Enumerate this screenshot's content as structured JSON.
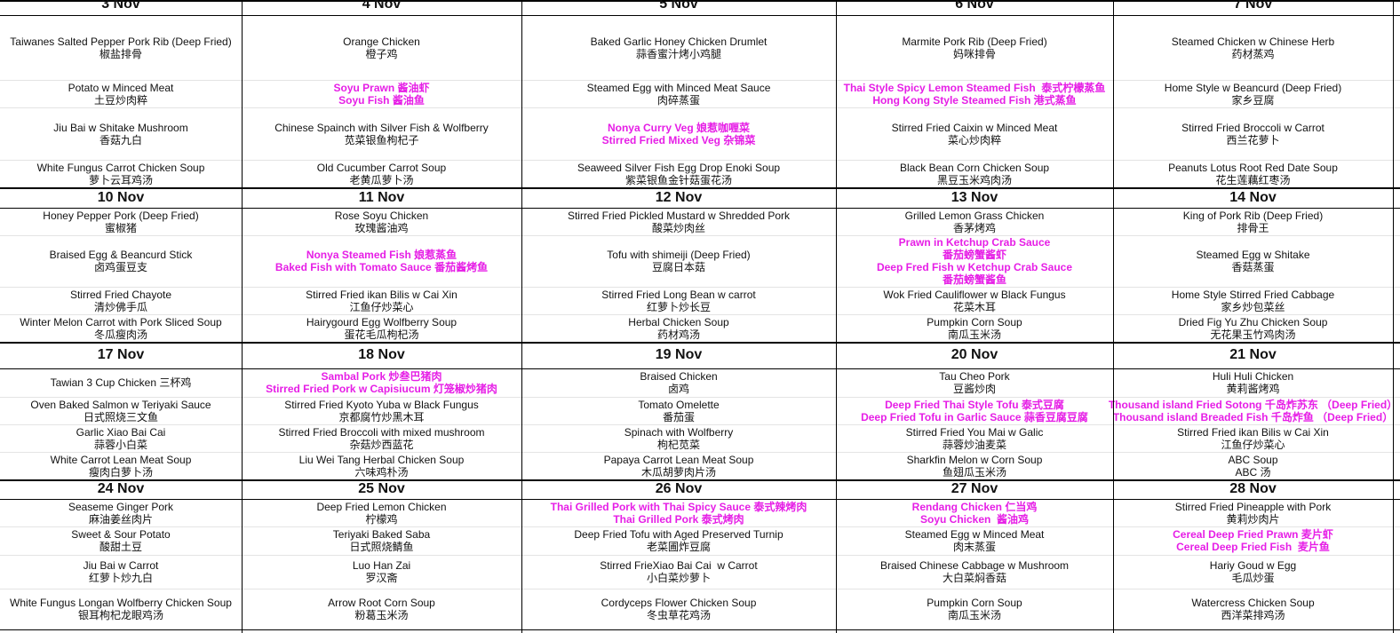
{
  "weeks": [
    {
      "days": [
        {
          "date": "3 Nov",
          "dishes": [
            {
              "lines": [
                "Taiwanes Salted Pepper Pork Rib (Deep Fried)",
                "椒盐排骨"
              ],
              "highlight": false
            },
            {
              "lines": [
                "Potato w Minced Meat",
                "土豆炒肉粹"
              ],
              "highlight": false
            },
            {
              "lines": [
                "Jiu Bai w Shitake Mushroom",
                "香菇九白"
              ],
              "highlight": false
            },
            {
              "lines": [
                "White Fungus Carrot Chicken Soup",
                "萝卜云耳鸡汤"
              ],
              "highlight": false
            }
          ]
        },
        {
          "date": "4 Nov",
          "dishes": [
            {
              "lines": [
                "Orange Chicken",
                "橙子鸡"
              ],
              "highlight": false
            },
            {
              "lines": [
                "Soyu Prawn 酱油虾",
                "Soyu Fish 酱油鱼"
              ],
              "highlight": true
            },
            {
              "lines": [
                "Chinese Spainch with Silver Fish & Wolfberry",
                "苋菜银鱼枸杞子"
              ],
              "highlight": false
            },
            {
              "lines": [
                "Old Cucumber Carrot Soup",
                "老黄瓜萝卜汤"
              ],
              "highlight": false
            }
          ]
        },
        {
          "date": "5 Nov",
          "dishes": [
            {
              "lines": [
                "Baked Garlic Honey Chicken Drumlet",
                "蒜香蜜汁烤小鸡腿"
              ],
              "highlight": false
            },
            {
              "lines": [
                "Steamed Egg with Minced Meat Sauce",
                "肉碎蒸蛋"
              ],
              "highlight": false
            },
            {
              "lines": [
                "Nonya Curry Veg 娘惹咖喱菜",
                "Stirred Fried Mixed Veg 杂锦菜"
              ],
              "highlight": true
            },
            {
              "lines": [
                "Seaweed Silver Fish Egg Drop Enoki Soup",
                "紫菜银鱼金针菇蛋花汤"
              ],
              "highlight": false
            }
          ]
        },
        {
          "date": "6 Nov",
          "dishes": [
            {
              "lines": [
                "Marmite Pork Rib (Deep Fried)",
                "妈咪排骨"
              ],
              "highlight": false
            },
            {
              "lines": [
                "Thai Style Spicy Lemon Steamed Fish  泰式柠檬蒸鱼",
                "Hong Kong Style Steamed Fish 港式蒸鱼"
              ],
              "highlight": true
            },
            {
              "lines": [
                "Stirred Fried Caixin w Minced Meat",
                "菜心炒肉粹"
              ],
              "highlight": false
            },
            {
              "lines": [
                "Black Bean Corn Chicken Soup",
                "黑豆玉米鸡肉汤"
              ],
              "highlight": false
            }
          ]
        },
        {
          "date": "7 Nov",
          "dishes": [
            {
              "lines": [
                "Steamed Chicken w Chinese Herb",
                "药材蒸鸡"
              ],
              "highlight": false
            },
            {
              "lines": [
                "Home Style w Beancurd (Deep Fried)",
                "家乡豆腐"
              ],
              "highlight": false
            },
            {
              "lines": [
                "Stirred Fried Broccoli w Carrot",
                "西兰花萝卜"
              ],
              "highlight": false
            },
            {
              "lines": [
                "Peanuts Lotus Root Red Date Soup",
                "花生莲藕红枣汤"
              ],
              "highlight": false
            }
          ]
        }
      ]
    },
    {
      "days": [
        {
          "date": "10 Nov",
          "dishes": [
            {
              "lines": [
                "Honey Pepper Pork (Deep Fried)",
                "蜜椒猪"
              ],
              "highlight": false
            },
            {
              "lines": [
                "Braised Egg & Beancurd Stick",
                "卤鸡蛋豆支"
              ],
              "highlight": false
            },
            {
              "lines": [
                "Stirred Fried Chayote",
                "清炒佛手瓜"
              ],
              "highlight": false
            },
            {
              "lines": [
                "Winter Melon Carrot with Pork Sliced Soup",
                "冬瓜瘦肉汤"
              ],
              "highlight": false
            }
          ]
        },
        {
          "date": "11 Nov",
          "dishes": [
            {
              "lines": [
                "Rose Soyu Chicken",
                "玫瑰酱油鸡"
              ],
              "highlight": false
            },
            {
              "lines": [
                "Nonya Steamed Fish 娘惹蒸鱼",
                "Baked Fish with Tomato Sauce 番茄酱烤鱼"
              ],
              "highlight": true
            },
            {
              "lines": [
                "Stirred Fried ikan Bilis w Cai Xin",
                "江鱼仔炒菜心"
              ],
              "highlight": false
            },
            {
              "lines": [
                "Hairygourd Egg Wolfberry Soup",
                "蛋花毛瓜枸杞汤"
              ],
              "highlight": false
            }
          ]
        },
        {
          "date": "12 Nov",
          "dishes": [
            {
              "lines": [
                "Stirred Fried Pickled Mustard w Shredded Pork",
                "酸菜炒肉丝"
              ],
              "highlight": false
            },
            {
              "lines": [
                "Tofu with shimeiji (Deep Fried)",
                "豆腐日本菇"
              ],
              "highlight": false
            },
            {
              "lines": [
                "Stirred Fried Long Bean w carrot",
                "红萝卜炒长豆"
              ],
              "highlight": false
            },
            {
              "lines": [
                "Herbal Chicken Soup",
                "药材鸡汤"
              ],
              "highlight": false
            }
          ]
        },
        {
          "date": "13 Nov",
          "dishes": [
            {
              "lines": [
                "Grilled Lemon Grass Chicken",
                "香茅烤鸡"
              ],
              "highlight": false
            },
            {
              "lines": [
                "Prawn in Ketchup Crab Sauce",
                "番茄螃蟹酱虾",
                "Deep Fred Fish w Ketchup Crab Sauce",
                "番茄螃蟹酱鱼"
              ],
              "highlight": true
            },
            {
              "lines": [
                "Wok Fried Cauliflower w Black Fungus",
                "花菜木耳"
              ],
              "highlight": false
            },
            {
              "lines": [
                "Pumpkin Corn Soup",
                "南瓜玉米汤"
              ],
              "highlight": false
            }
          ]
        },
        {
          "date": "14 Nov",
          "dishes": [
            {
              "lines": [
                "King of Pork Rib (Deep Fried)",
                "排骨王"
              ],
              "highlight": false
            },
            {
              "lines": [
                "Steamed Egg w Shitake",
                "香菇蒸蛋"
              ],
              "highlight": false
            },
            {
              "lines": [
                "Home Style Stirred Fried Cabbage",
                "家乡炒包菜丝"
              ],
              "highlight": false
            },
            {
              "lines": [
                "Dried Fig Yu Zhu Chicken Soup",
                "无花果玉竹鸡肉汤"
              ],
              "highlight": false
            }
          ]
        }
      ]
    },
    {
      "days": [
        {
          "date": "17 Nov",
          "dishes": [
            {
              "lines": [
                "Tawian 3 Cup Chicken 三杯鸡"
              ],
              "highlight": false
            },
            {
              "lines": [
                "Oven Baked Salmon w Teriyaki Sauce",
                "日式照烧三文鱼"
              ],
              "highlight": false
            },
            {
              "lines": [
                "Garlic Xiao Bai Cai",
                "蒜蓉小白菜"
              ],
              "highlight": false
            },
            {
              "lines": [
                "White Carrot Lean Meat Soup",
                "瘦肉白萝卜汤"
              ],
              "highlight": false
            }
          ]
        },
        {
          "date": "18 Nov",
          "dishes": [
            {
              "lines": [
                "Sambal Pork 炒叁巴猪肉",
                "Stirred Fried Pork w Capisiucum 灯笼椒炒猪肉"
              ],
              "highlight": true
            },
            {
              "lines": [
                "Stirred Fried Kyoto Yuba w Black Fungus",
                "京都腐竹炒黑木耳"
              ],
              "highlight": false
            },
            {
              "lines": [
                "Stirred Fried Broccoli with mixed mushroom",
                "杂菇炒西蓝花"
              ],
              "highlight": false
            },
            {
              "lines": [
                "Liu Wei Tang Herbal Chicken Soup",
                "六味鸡朴汤"
              ],
              "highlight": false
            }
          ]
        },
        {
          "date": "19 Nov",
          "dishes": [
            {
              "lines": [
                "Braised Chicken",
                "卤鸡"
              ],
              "highlight": false
            },
            {
              "lines": [
                "Tomato Omelette",
                "番茄蛋"
              ],
              "highlight": false
            },
            {
              "lines": [
                "Spinach with Wolfberry",
                "枸杞苋菜"
              ],
              "highlight": false
            },
            {
              "lines": [
                "Papaya Carrot Lean Meat Soup",
                "木瓜胡萝肉片汤"
              ],
              "highlight": false
            }
          ]
        },
        {
          "date": "20 Nov",
          "dishes": [
            {
              "lines": [
                "Tau Cheo Pork",
                "豆酱炒肉"
              ],
              "highlight": false
            },
            {
              "lines": [
                "Deep Fried Thai Style Tofu 泰式豆腐",
                "Deep Fried Tofu in Garlic Sauce 蒜香豆腐豆腐"
              ],
              "highlight": true
            },
            {
              "lines": [
                "Stirred Fried You Mai w Galic",
                "蒜蓉炒油麦菜"
              ],
              "highlight": false
            },
            {
              "lines": [
                "Sharkfin Melon w Corn Soup",
                "鱼翅瓜玉米汤"
              ],
              "highlight": false
            }
          ]
        },
        {
          "date": "21 Nov",
          "dishes": [
            {
              "lines": [
                "Huli Huli Chicken",
                "黄莉酱烤鸡"
              ],
              "highlight": false
            },
            {
              "lines": [
                "Thousand island Fried Sotong 千岛炸苏东 （Deep Fried）",
                "Thousand island Breaded Fish 千岛炸鱼 （Deep Fried）"
              ],
              "highlight": true
            },
            {
              "lines": [
                "Stirred Fried ikan Bilis w Cai Xin",
                "江鱼仔炒菜心"
              ],
              "highlight": false
            },
            {
              "lines": [
                "ABC Soup",
                "ABC 汤"
              ],
              "highlight": false
            }
          ]
        }
      ]
    },
    {
      "days": [
        {
          "date": "24 Nov",
          "dishes": [
            {
              "lines": [
                "Seaseme Ginger Pork",
                "麻油姜丝肉片"
              ],
              "highlight": false
            },
            {
              "lines": [
                "Sweet & Sour Potato",
                "酸甜土豆"
              ],
              "highlight": false
            },
            {
              "lines": [
                "Jiu Bai w Carrot",
                "红萝卜炒九白"
              ],
              "highlight": false
            },
            {
              "lines": [
                "White Fungus Longan Wolfberry Chicken Soup",
                "银耳枸杞龙眼鸡汤"
              ],
              "highlight": false
            }
          ]
        },
        {
          "date": "25 Nov",
          "dishes": [
            {
              "lines": [
                "Deep Fried Lemon Chicken",
                "柠檬鸡"
              ],
              "highlight": false
            },
            {
              "lines": [
                "Teriyaki Baked Saba",
                "日式照烧鲭鱼"
              ],
              "highlight": false
            },
            {
              "lines": [
                "Luo Han Zai",
                "罗汉斋"
              ],
              "highlight": false
            },
            {
              "lines": [
                "Arrow Root Corn Soup",
                "粉葛玉米汤"
              ],
              "highlight": false
            }
          ]
        },
        {
          "date": "26 Nov",
          "dishes": [
            {
              "lines": [
                "Thai Grilled Pork with Thai Spicy Sauce 泰式辣烤肉",
                "Thai Grilled Pork 泰式烤肉"
              ],
              "highlight": true
            },
            {
              "lines": [
                "Deep Fried Tofu with Aged Preserved Turnip",
                "老菜圃炸豆腐"
              ],
              "highlight": false
            },
            {
              "lines": [
                "Stirred FrieXiao Bai Cai  w Carrot",
                "小白菜炒萝卜"
              ],
              "highlight": false
            },
            {
              "lines": [
                "Cordyceps Flower Chicken Soup",
                "冬虫草花鸡汤"
              ],
              "highlight": false
            }
          ]
        },
        {
          "date": "27 Nov",
          "dishes": [
            {
              "lines": [
                "Rendang Chicken 仁当鸡",
                "Soyu Chicken  酱油鸡"
              ],
              "highlight": true
            },
            {
              "lines": [
                "Steamed Egg w Minced Meat",
                "肉末蒸蛋"
              ],
              "highlight": false
            },
            {
              "lines": [
                "Braised Chinese Cabbage w Mushroom",
                "大白菜焖香菇"
              ],
              "highlight": false
            },
            {
              "lines": [
                "Pumpkin Corn Soup",
                "南瓜玉米汤"
              ],
              "highlight": false
            }
          ]
        },
        {
          "date": "28 Nov",
          "dishes": [
            {
              "lines": [
                "Stirred Fried Pineapple with Pork",
                "黄莉炒肉片"
              ],
              "highlight": false
            },
            {
              "lines": [
                "Cereal Deep Fried Prawn 麦片虾",
                "Cereal Deep Fried Fish  麦片鱼"
              ],
              "highlight": true
            },
            {
              "lines": [
                "Hariy Goud w Egg",
                "毛瓜炒蛋"
              ],
              "highlight": false
            },
            {
              "lines": [
                "Watercress Chicken Soup",
                "西洋菜排鸡汤"
              ],
              "highlight": false
            }
          ]
        }
      ]
    }
  ]
}
